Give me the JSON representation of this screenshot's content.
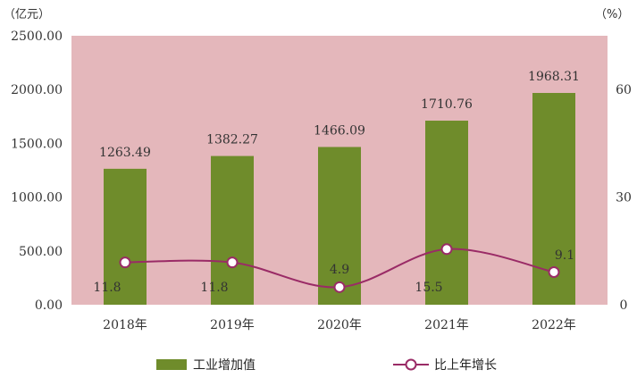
{
  "chart_data": {
    "type": "bar",
    "categories": [
      "2018年",
      "2019年",
      "2020年",
      "2021年",
      "2022年"
    ],
    "y_left": {
      "unit": "（亿元）",
      "ticks": [
        "2500.00",
        "2000.00",
        "1500.00",
        "1000.00",
        "500.00",
        "0.00"
      ],
      "ylim": [
        0,
        2500
      ]
    },
    "y_right": {
      "unit": "（%）",
      "ticks": [
        "60",
        "30",
        "0"
      ],
      "ylim": [
        0,
        75
      ]
    },
    "series": [
      {
        "name": "工业增加值",
        "kind": "bar",
        "axis": "left",
        "values": [
          1263.49,
          1382.27,
          1466.09,
          1710.76,
          1968.31
        ],
        "labels": [
          "1263.49",
          "1382.27",
          "1466.09",
          "1710.76",
          "1968.31"
        ]
      },
      {
        "name": "比上年增长",
        "kind": "line",
        "axis": "right",
        "values": [
          11.8,
          11.8,
          4.9,
          15.5,
          9.1
        ],
        "labels": [
          "11.8",
          "11.8",
          "4.9",
          "15.5",
          "9.1"
        ]
      }
    ],
    "colors": {
      "plot_background": "#e4b7bb",
      "bar": "#6f8c2b",
      "line": "#9a2b66"
    },
    "legend_position": "bottom"
  }
}
